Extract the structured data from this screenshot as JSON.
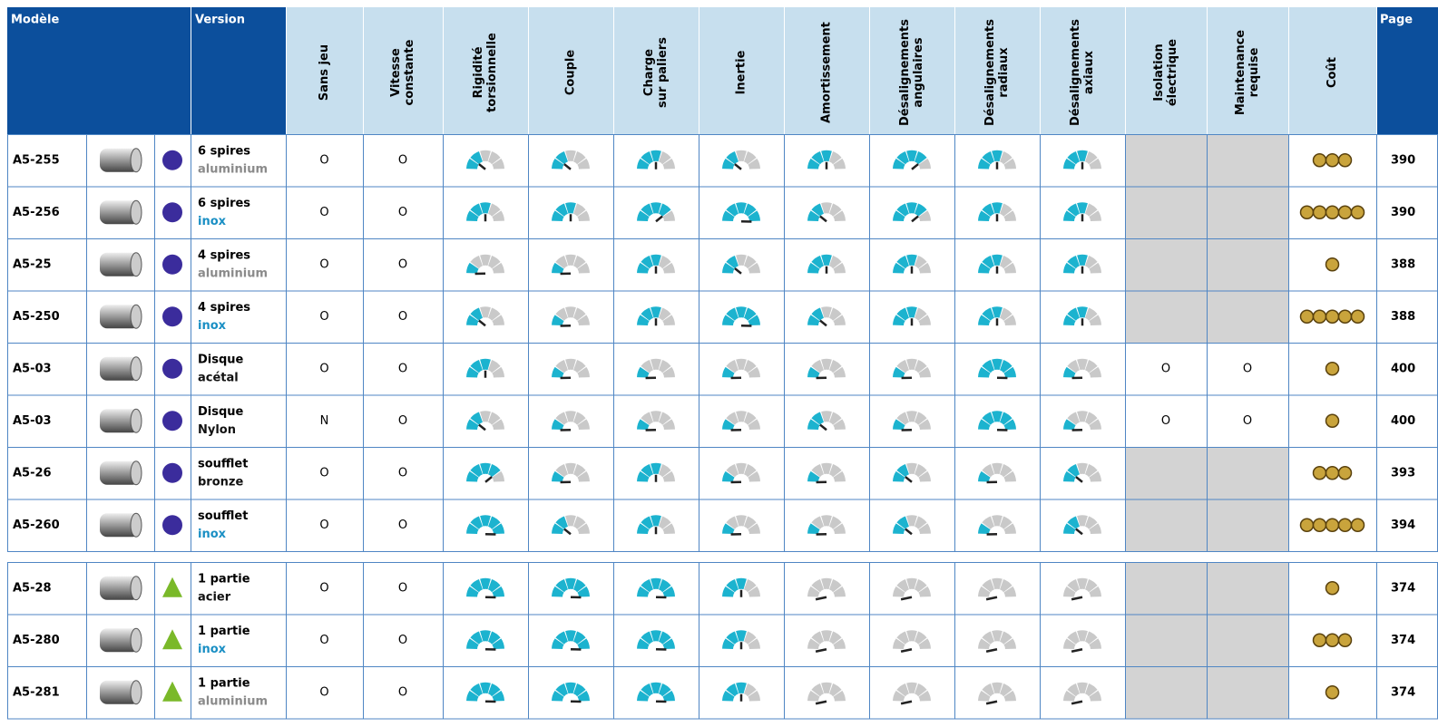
{
  "header": {
    "model": "Modèle",
    "version": "Version",
    "page": "Page",
    "criteria": [
      [
        "Sans jeu"
      ],
      [
        "Vitesse",
        "constante"
      ],
      [
        "Rigidité",
        "torsionnelle"
      ],
      [
        "Couple"
      ],
      [
        "Charge",
        "sur paliers"
      ],
      [
        "Inertie"
      ],
      [
        "Amortissement"
      ],
      [
        "Désalignements",
        "angulaires"
      ],
      [
        "Désalignements",
        "radiaux"
      ],
      [
        "Désalignements",
        "axiaux"
      ],
      [
        "Isolation",
        "électrique"
      ],
      [
        "Maintenance",
        "requise"
      ],
      [
        "Coût"
      ]
    ]
  },
  "rows": [
    {
      "model": "A5-255",
      "marker": "circle",
      "marker_color": "#3b2c9c",
      "version": [
        "6 spires",
        "aluminium"
      ],
      "version_color": "#8a8a8a",
      "sans_jeu": "O",
      "vitesse": "O",
      "gauges": [
        2,
        2,
        3,
        2,
        3,
        4,
        3,
        3
      ],
      "isolation": null,
      "maintenance": null,
      "cost": 3,
      "page": 390
    },
    {
      "model": "A5-256",
      "marker": "circle",
      "marker_color": "#3b2c9c",
      "version": [
        "6 spires",
        "inox"
      ],
      "version_color": "#1a8fc4",
      "sans_jeu": "O",
      "vitesse": "O",
      "gauges": [
        3,
        3,
        4,
        5,
        2,
        4,
        3,
        3
      ],
      "isolation": null,
      "maintenance": null,
      "cost": 5,
      "page": 390
    },
    {
      "model": "A5-25",
      "marker": "circle",
      "marker_color": "#3b2c9c",
      "version": [
        "4 spires",
        "aluminium"
      ],
      "version_color": "#8a8a8a",
      "sans_jeu": "O",
      "vitesse": "O",
      "gauges": [
        1,
        1,
        3,
        2,
        3,
        3,
        3,
        3
      ],
      "isolation": null,
      "maintenance": null,
      "cost": 1,
      "page": 388
    },
    {
      "model": "A5-250",
      "marker": "circle",
      "marker_color": "#3b2c9c",
      "version": [
        "4 spires",
        "inox"
      ],
      "version_color": "#1a8fc4",
      "sans_jeu": "O",
      "vitesse": "O",
      "gauges": [
        2,
        1,
        3,
        5,
        2,
        3,
        3,
        3
      ],
      "isolation": null,
      "maintenance": null,
      "cost": 5,
      "page": 388
    },
    {
      "model": "A5-03",
      "marker": "circle",
      "marker_color": "#3b2c9c",
      "version": [
        "Disque",
        "acétal"
      ],
      "version_color": "#111111",
      "sans_jeu": "O",
      "vitesse": "O",
      "gauges": [
        3,
        1,
        1,
        1,
        1,
        1,
        5,
        1
      ],
      "isolation": "O",
      "maintenance": "O",
      "cost": 1,
      "page": 400
    },
    {
      "model": "A5-03",
      "marker": "circle",
      "marker_color": "#3b2c9c",
      "version": [
        "Disque",
        "Nylon"
      ],
      "version_color": "#111111",
      "sans_jeu": "N",
      "vitesse": "O",
      "gauges": [
        2,
        1,
        1,
        1,
        2,
        1,
        5,
        1
      ],
      "isolation": "O",
      "maintenance": "O",
      "cost": 1,
      "page": 400
    },
    {
      "model": "A5-26",
      "marker": "circle",
      "marker_color": "#3b2c9c",
      "version": [
        "soufflet",
        "bronze"
      ],
      "version_color": "#111111",
      "sans_jeu": "O",
      "vitesse": "O",
      "gauges": [
        4,
        1,
        3,
        1,
        1,
        2,
        1,
        2
      ],
      "isolation": null,
      "maintenance": null,
      "cost": 3,
      "page": 393
    },
    {
      "model": "A5-260",
      "marker": "circle",
      "marker_color": "#3b2c9c",
      "version": [
        "soufflet",
        "inox"
      ],
      "version_color": "#1a8fc4",
      "sans_jeu": "O",
      "vitesse": "O",
      "gauges": [
        5,
        2,
        3,
        1,
        1,
        2,
        1,
        2
      ],
      "isolation": null,
      "maintenance": null,
      "cost": 5,
      "page": 394
    },
    {
      "model": "A5-28",
      "marker": "triangle",
      "marker_color": "#7ab929",
      "version": [
        "1 partie",
        "acier"
      ],
      "version_color": "#111111",
      "sans_jeu": "O",
      "vitesse": "O",
      "gauges": [
        5,
        5,
        5,
        3,
        0,
        0,
        0,
        0
      ],
      "isolation": null,
      "maintenance": null,
      "cost": 1,
      "page": 374
    },
    {
      "model": "A5-280",
      "marker": "triangle",
      "marker_color": "#7ab929",
      "version": [
        "1 partie",
        "inox"
      ],
      "version_color": "#1a8fc4",
      "sans_jeu": "O",
      "vitesse": "O",
      "gauges": [
        5,
        5,
        5,
        3,
        0,
        0,
        0,
        0
      ],
      "isolation": null,
      "maintenance": null,
      "cost": 3,
      "page": 374
    },
    {
      "model": "A5-281",
      "marker": "triangle",
      "marker_color": "#7ab929",
      "version": [
        "1 partie",
        "aluminium"
      ],
      "version_color": "#8a8a8a",
      "sans_jeu": "O",
      "vitesse": "O",
      "gauges": [
        5,
        5,
        5,
        3,
        0,
        0,
        0,
        0
      ],
      "isolation": null,
      "maintenance": null,
      "cost": 1,
      "page": 374
    }
  ]
}
